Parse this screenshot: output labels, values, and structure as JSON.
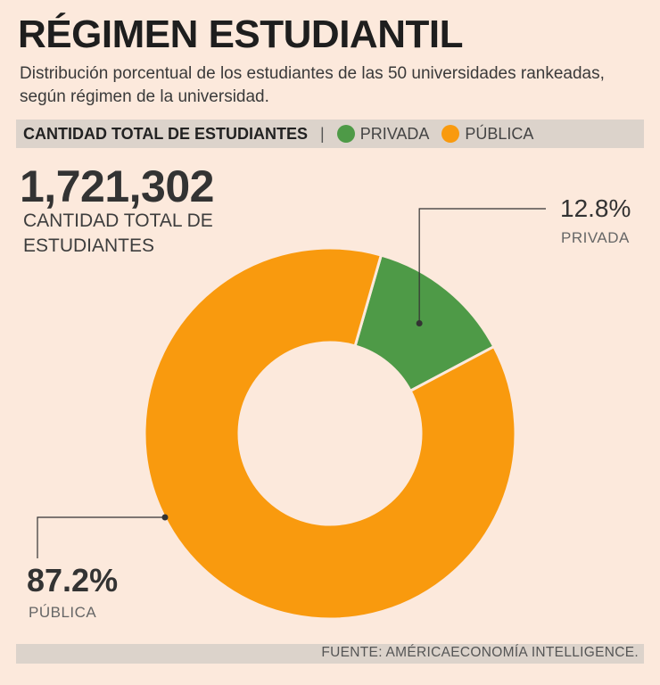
{
  "title": "RÉGIMEN ESTUDIANTIL",
  "subtitle": "Distribución porcentual de los estudiantes de las 50 universidades rankeadas, según régimen de la universidad.",
  "legend": {
    "title": "CANTIDAD TOTAL DE ESTUDIANTES",
    "separator": "|",
    "items": [
      {
        "label": "PRIVADA",
        "color": "#4e9a47"
      },
      {
        "label": "PÚBLICA",
        "color": "#f99a0e"
      }
    ]
  },
  "total": {
    "value": "1,721,302",
    "label": "CANTIDAD TOTAL DE ESTUDIANTES"
  },
  "chart_data": {
    "type": "pie",
    "donut": true,
    "title": "RÉGIMEN ESTUDIANTIL",
    "categories": [
      "PRIVADA",
      "PÚBLICA"
    ],
    "values": [
      12.8,
      87.2
    ],
    "value_labels": [
      "12.8%",
      "87.2%"
    ],
    "colors": [
      "#4e9a47",
      "#f99a0e"
    ],
    "legend": "top"
  },
  "source": "FUENTE: AMÉRICAECONOMÍA INTELLIGENCE."
}
